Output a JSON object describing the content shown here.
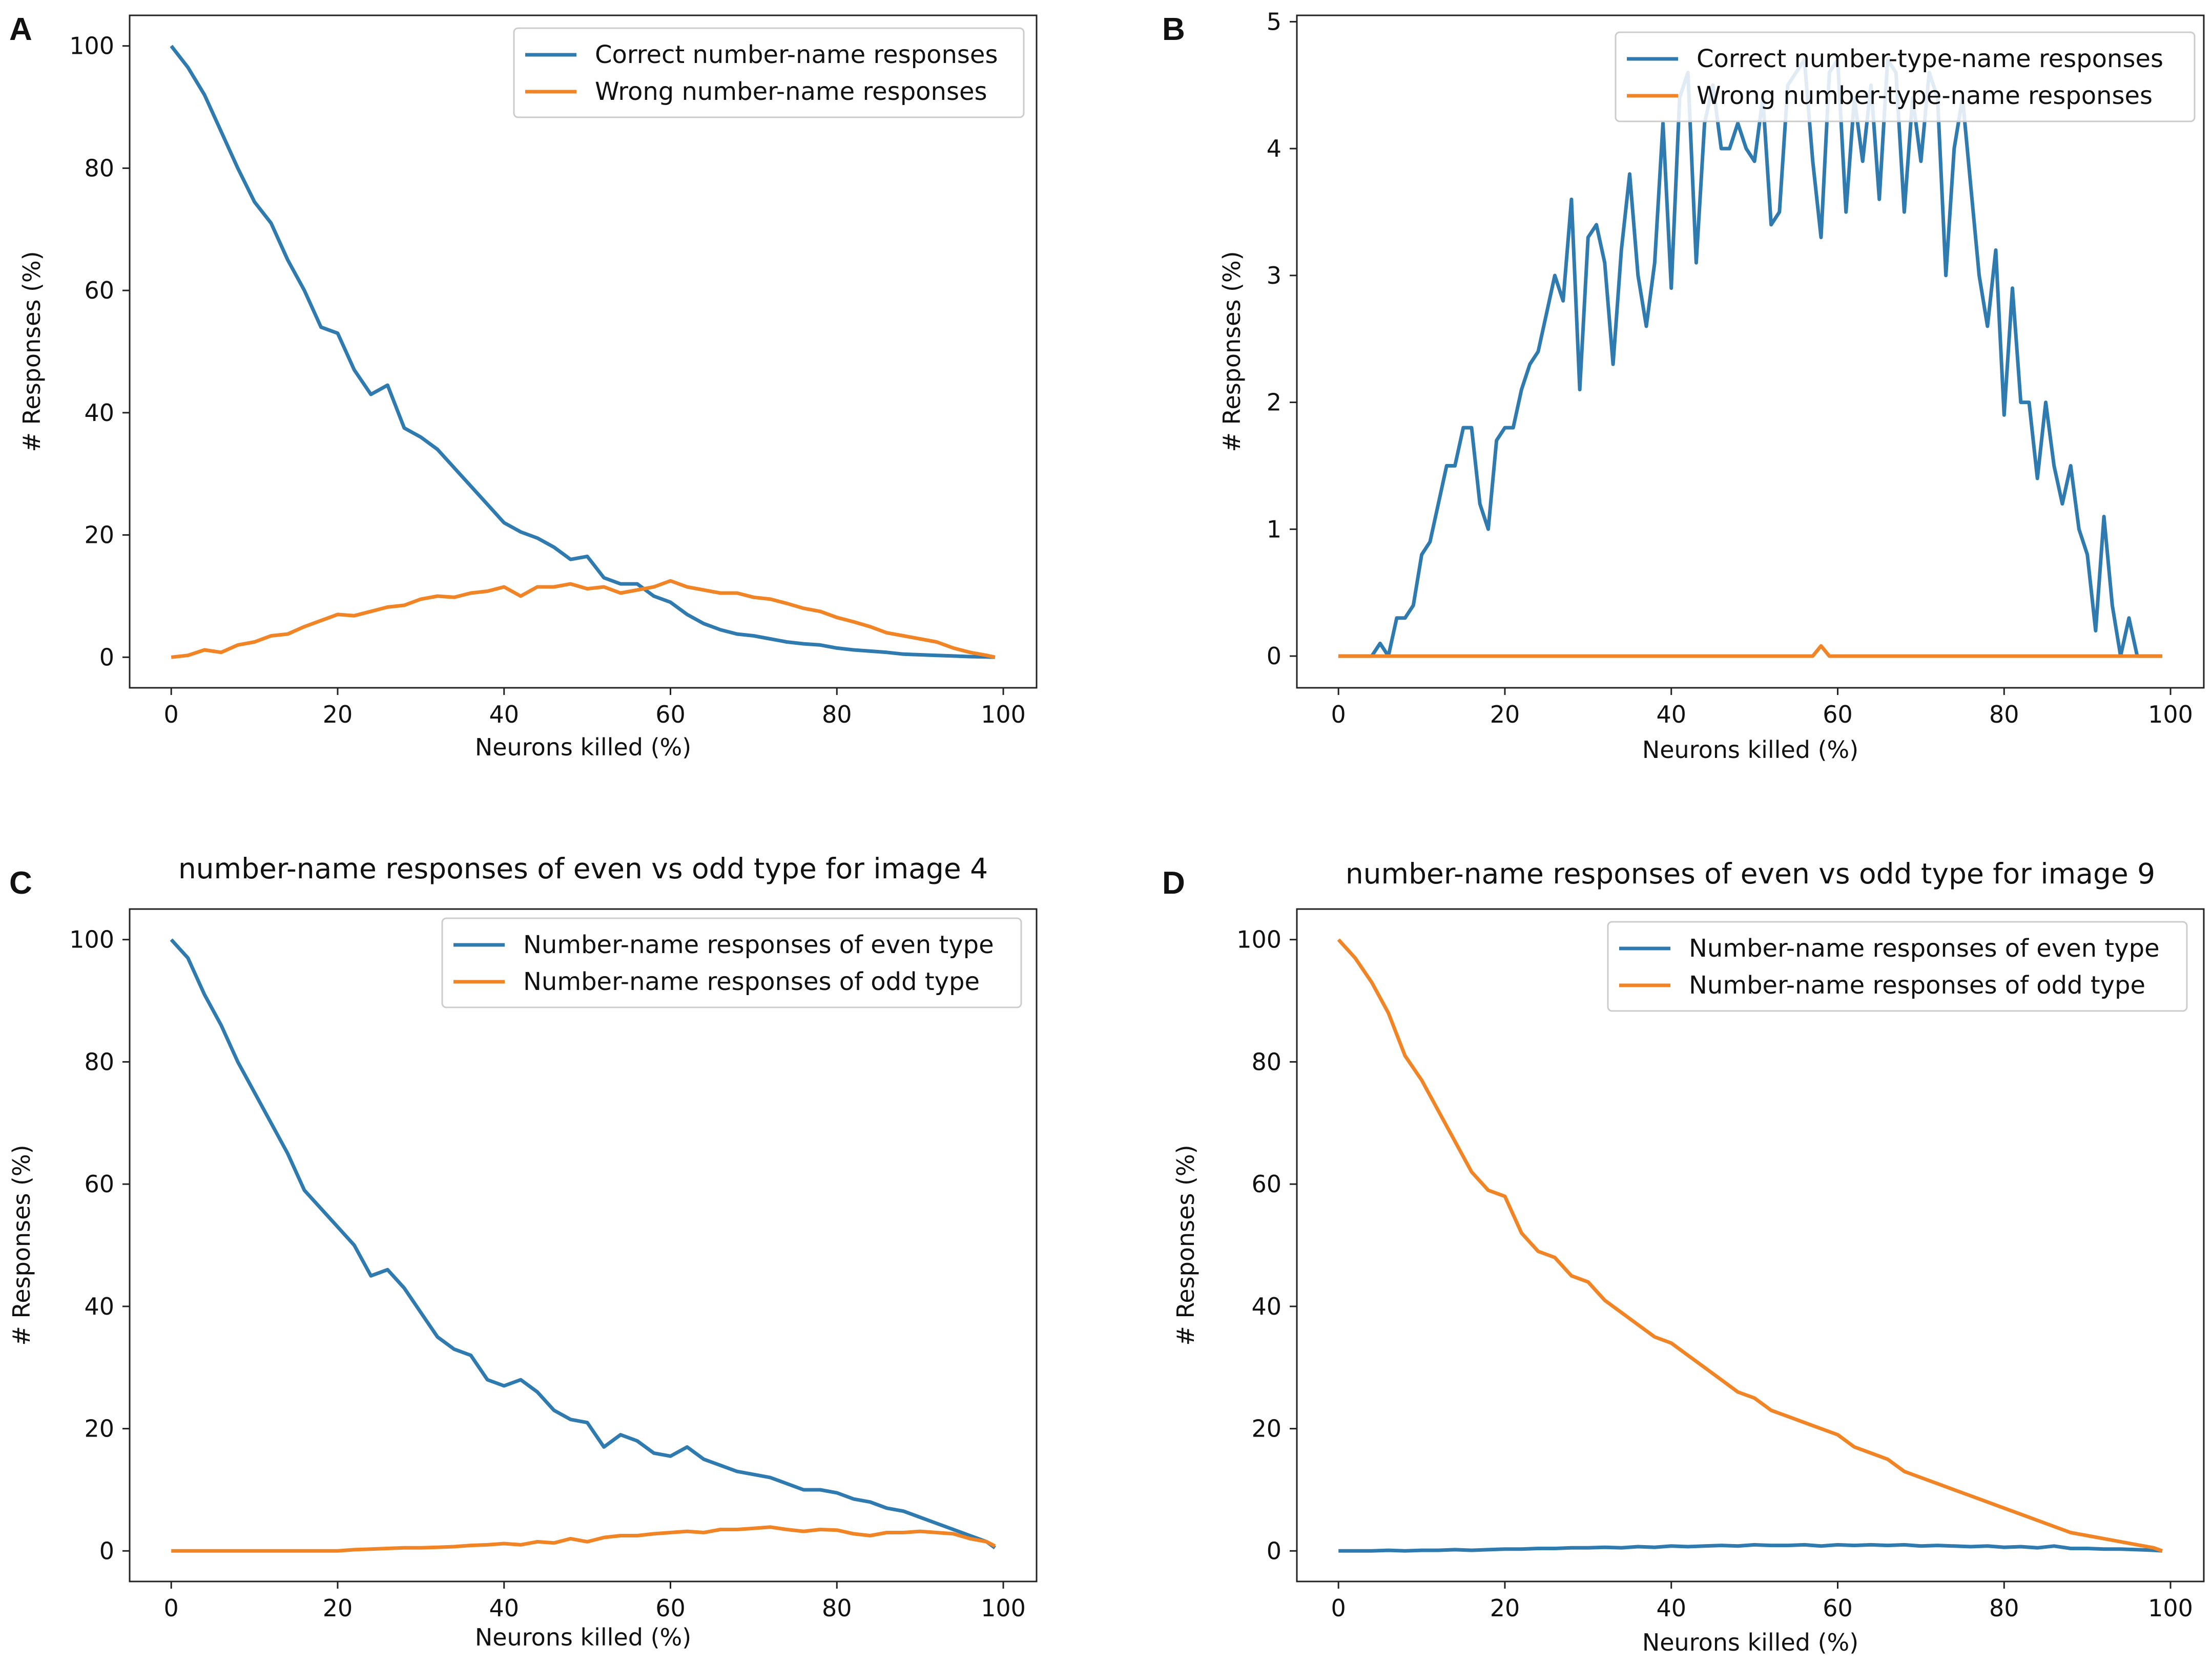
{
  "colors": {
    "blue": "#2f7bb0",
    "orange": "#f18424",
    "axis": "#222222",
    "legend_border": "#cccccc"
  },
  "chart_data": [
    {
      "panel": "A",
      "type": "line",
      "title": "",
      "xlabel": "Neurons killed (%)",
      "ylabel": "# Responses (%)",
      "xlim": [
        -5,
        104
      ],
      "ylim": [
        -5,
        105
      ],
      "xticks": [
        0,
        20,
        40,
        60,
        80,
        100
      ],
      "yticks": [
        0,
        20,
        40,
        60,
        80,
        100
      ],
      "legend_position": "top-right",
      "x": [
        0,
        2,
        4,
        6,
        8,
        10,
        12,
        14,
        16,
        18,
        20,
        22,
        24,
        26,
        28,
        30,
        32,
        34,
        36,
        38,
        40,
        42,
        44,
        46,
        48,
        50,
        52,
        54,
        56,
        58,
        60,
        62,
        64,
        66,
        68,
        70,
        72,
        74,
        76,
        78,
        80,
        82,
        84,
        86,
        88,
        90,
        92,
        94,
        96,
        98,
        99
      ],
      "series": [
        {
          "name": "Correct number-name responses",
          "color": "blue",
          "values": [
            100,
            96.5,
            92,
            86,
            80,
            74.5,
            71,
            65,
            60,
            54,
            53,
            47,
            43,
            44.5,
            37.5,
            36,
            34,
            31,
            28,
            25,
            22,
            20.5,
            19.5,
            18,
            16,
            16.5,
            13,
            12,
            12,
            10,
            9,
            7,
            5.5,
            4.5,
            3.8,
            3.5,
            3,
            2.5,
            2.2,
            2,
            1.5,
            1.2,
            1,
            0.8,
            0.5,
            0.4,
            0.3,
            0.2,
            0.1,
            0.05,
            0
          ]
        },
        {
          "name": "Wrong number-name responses",
          "color": "orange",
          "values": [
            0,
            0.3,
            1.2,
            0.8,
            2,
            2.5,
            3.5,
            3.8,
            5,
            6,
            7,
            6.8,
            7.5,
            8.2,
            8.5,
            9.5,
            10,
            9.8,
            10.5,
            10.8,
            11.5,
            10,
            11.5,
            11.5,
            12,
            11.2,
            11.5,
            10.5,
            11,
            11.5,
            12.5,
            11.5,
            11,
            10.5,
            10.5,
            9.8,
            9.5,
            8.8,
            8,
            7.5,
            6.5,
            5.8,
            5,
            4,
            3.5,
            3,
            2.5,
            1.5,
            0.8,
            0.3,
            0
          ]
        }
      ]
    },
    {
      "panel": "B",
      "type": "line",
      "title": "",
      "xlabel": "Neurons killed (%)",
      "ylabel": "# Responses (%)",
      "xlim": [
        -5,
        104
      ],
      "ylim": [
        -0.25,
        5.05
      ],
      "xticks": [
        0,
        20,
        40,
        60,
        80,
        100
      ],
      "yticks": [
        0,
        1,
        2,
        3,
        4,
        5
      ],
      "legend_position": "top-right",
      "x": [
        0,
        2,
        4,
        5,
        6,
        7,
        8,
        9,
        10,
        11,
        12,
        13,
        14,
        15,
        16,
        17,
        18,
        19,
        20,
        21,
        22,
        23,
        24,
        25,
        26,
        27,
        28,
        29,
        30,
        31,
        32,
        33,
        34,
        35,
        36,
        37,
        38,
        39,
        40,
        41,
        42,
        43,
        44,
        45,
        46,
        47,
        48,
        49,
        50,
        51,
        52,
        53,
        54,
        55,
        56,
        57,
        58,
        59,
        60,
        61,
        62,
        63,
        64,
        65,
        66,
        67,
        68,
        69,
        70,
        71,
        72,
        73,
        74,
        75,
        76,
        77,
        78,
        79,
        80,
        81,
        82,
        83,
        84,
        85,
        86,
        87,
        88,
        89,
        90,
        91,
        92,
        93,
        94,
        95,
        96,
        98,
        99
      ],
      "series": [
        {
          "name": "Correct number-type-name responses",
          "color": "blue",
          "values": [
            0,
            0,
            0,
            0.1,
            0,
            0.3,
            0.3,
            0.4,
            0.8,
            0.9,
            1.2,
            1.5,
            1.5,
            1.8,
            1.8,
            1.2,
            1.0,
            1.7,
            1.8,
            1.8,
            2.1,
            2.3,
            2.4,
            2.7,
            3.0,
            2.8,
            3.6,
            2.1,
            3.3,
            3.4,
            3.1,
            2.3,
            3.2,
            3.8,
            3.0,
            2.6,
            3.1,
            4.2,
            2.9,
            4.4,
            4.6,
            3.1,
            4.2,
            4.5,
            4.0,
            4.0,
            4.2,
            4.0,
            3.9,
            4.4,
            3.4,
            3.5,
            4.5,
            4.6,
            4.7,
            3.9,
            3.3,
            4.6,
            4.7,
            3.5,
            4.4,
            3.9,
            4.5,
            3.6,
            4.7,
            4.6,
            3.5,
            4.4,
            3.9,
            4.6,
            4.4,
            3.0,
            4.0,
            4.4,
            3.7,
            3.0,
            2.6,
            3.2,
            1.9,
            2.9,
            2.0,
            2.0,
            1.4,
            2.0,
            1.5,
            1.2,
            1.5,
            1.0,
            0.8,
            0.2,
            1.1,
            0.4,
            0,
            0.3,
            0,
            0,
            0
          ]
        },
        {
          "name": "Wrong number-type-name responses",
          "color": "orange",
          "values": [
            0,
            0,
            0,
            0,
            0,
            0,
            0,
            0,
            0,
            0,
            0,
            0,
            0,
            0,
            0,
            0,
            0,
            0,
            0,
            0,
            0,
            0,
            0,
            0,
            0,
            0,
            0,
            0,
            0,
            0,
            0,
            0,
            0,
            0,
            0,
            0,
            0,
            0,
            0,
            0,
            0,
            0,
            0,
            0,
            0,
            0,
            0,
            0,
            0,
            0,
            0,
            0,
            0,
            0,
            0,
            0,
            0.08,
            0,
            0,
            0,
            0,
            0,
            0,
            0,
            0,
            0,
            0,
            0,
            0,
            0,
            0,
            0,
            0,
            0,
            0,
            0,
            0,
            0,
            0,
            0,
            0,
            0,
            0,
            0,
            0,
            0,
            0,
            0,
            0,
            0,
            0,
            0,
            0,
            0,
            0,
            0,
            0
          ]
        }
      ]
    },
    {
      "panel": "C",
      "type": "line",
      "title": "number-name responses of even vs odd type for image 4",
      "xlabel": "Neurons killed (%)",
      "ylabel": "# Responses (%)",
      "xlim": [
        -5,
        104
      ],
      "ylim": [
        -5,
        105
      ],
      "xticks": [
        0,
        20,
        40,
        60,
        80,
        100
      ],
      "yticks": [
        0,
        20,
        40,
        60,
        80,
        100
      ],
      "legend_position": "top-right",
      "x": [
        0,
        2,
        4,
        6,
        8,
        10,
        12,
        14,
        16,
        18,
        20,
        22,
        24,
        26,
        28,
        30,
        32,
        34,
        36,
        38,
        40,
        42,
        44,
        46,
        48,
        50,
        52,
        54,
        56,
        58,
        60,
        62,
        64,
        66,
        68,
        70,
        72,
        74,
        76,
        78,
        80,
        82,
        84,
        86,
        88,
        90,
        92,
        94,
        96,
        98,
        99
      ],
      "series": [
        {
          "name": "Number-name responses of even type",
          "color": "blue",
          "values": [
            100,
            97,
            91,
            86,
            80,
            75,
            70,
            65,
            59,
            56,
            53,
            50,
            45,
            46,
            43,
            39,
            35,
            33,
            32,
            28,
            27,
            28,
            26,
            23,
            21.5,
            21,
            17,
            19,
            18,
            16,
            15.5,
            17,
            15,
            14,
            13,
            12.5,
            12,
            11,
            10,
            10,
            9.5,
            8.5,
            8,
            7,
            6.5,
            5.5,
            4.5,
            3.5,
            2.5,
            1.5,
            0.5
          ]
        },
        {
          "name": "Number-name responses of odd type",
          "color": "orange",
          "values": [
            0,
            0,
            0,
            0,
            0,
            0,
            0,
            0,
            0,
            0,
            0,
            0.2,
            0.3,
            0.4,
            0.5,
            0.5,
            0.6,
            0.7,
            0.9,
            1.0,
            1.2,
            1.0,
            1.5,
            1.3,
            2.0,
            1.5,
            2.2,
            2.5,
            2.5,
            2.8,
            3.0,
            3.2,
            3.0,
            3.5,
            3.5,
            3.7,
            3.9,
            3.5,
            3.2,
            3.5,
            3.4,
            2.8,
            2.5,
            3.0,
            3.0,
            3.2,
            3.0,
            2.8,
            2.0,
            1.5,
            0.8
          ]
        }
      ]
    },
    {
      "panel": "D",
      "type": "line",
      "title": "number-name responses of even vs odd type for image 9",
      "xlabel": "Neurons killed (%)",
      "ylabel": "# Responses (%)",
      "xlim": [
        -5,
        104
      ],
      "ylim": [
        -5,
        105
      ],
      "xticks": [
        0,
        20,
        40,
        60,
        80,
        100
      ],
      "yticks": [
        0,
        20,
        40,
        60,
        80,
        100
      ],
      "legend_position": "top-right",
      "x": [
        0,
        2,
        4,
        6,
        8,
        10,
        12,
        14,
        16,
        18,
        20,
        22,
        24,
        26,
        28,
        30,
        32,
        34,
        36,
        38,
        40,
        42,
        44,
        46,
        48,
        50,
        52,
        54,
        56,
        58,
        60,
        62,
        64,
        66,
        68,
        70,
        72,
        74,
        76,
        78,
        80,
        82,
        84,
        86,
        88,
        90,
        92,
        94,
        96,
        98,
        99
      ],
      "series": [
        {
          "name": "Number-name responses of even type",
          "color": "blue",
          "values": [
            0,
            0,
            0,
            0.1,
            0,
            0.1,
            0.1,
            0.2,
            0.1,
            0.2,
            0.3,
            0.3,
            0.4,
            0.4,
            0.5,
            0.5,
            0.6,
            0.5,
            0.7,
            0.6,
            0.8,
            0.7,
            0.8,
            0.9,
            0.8,
            1.0,
            0.9,
            0.9,
            1.0,
            0.8,
            1.0,
            0.9,
            1.0,
            0.9,
            1.0,
            0.8,
            0.9,
            0.8,
            0.7,
            0.8,
            0.6,
            0.7,
            0.5,
            0.8,
            0.4,
            0.4,
            0.3,
            0.3,
            0.2,
            0.1,
            0
          ]
        },
        {
          "name": "Number-name responses of odd type",
          "color": "orange",
          "values": [
            100,
            97,
            93,
            88,
            81,
            77,
            72,
            67,
            62,
            59,
            58,
            52,
            49,
            48,
            45,
            44,
            41,
            39,
            37,
            35,
            34,
            32,
            30,
            28,
            26,
            25,
            23,
            22,
            21,
            20,
            19,
            17,
            16,
            15,
            13,
            12,
            11,
            10,
            9,
            8,
            7,
            6,
            5,
            4,
            3,
            2.5,
            2,
            1.5,
            1,
            0.5,
            0
          ]
        }
      ]
    }
  ]
}
